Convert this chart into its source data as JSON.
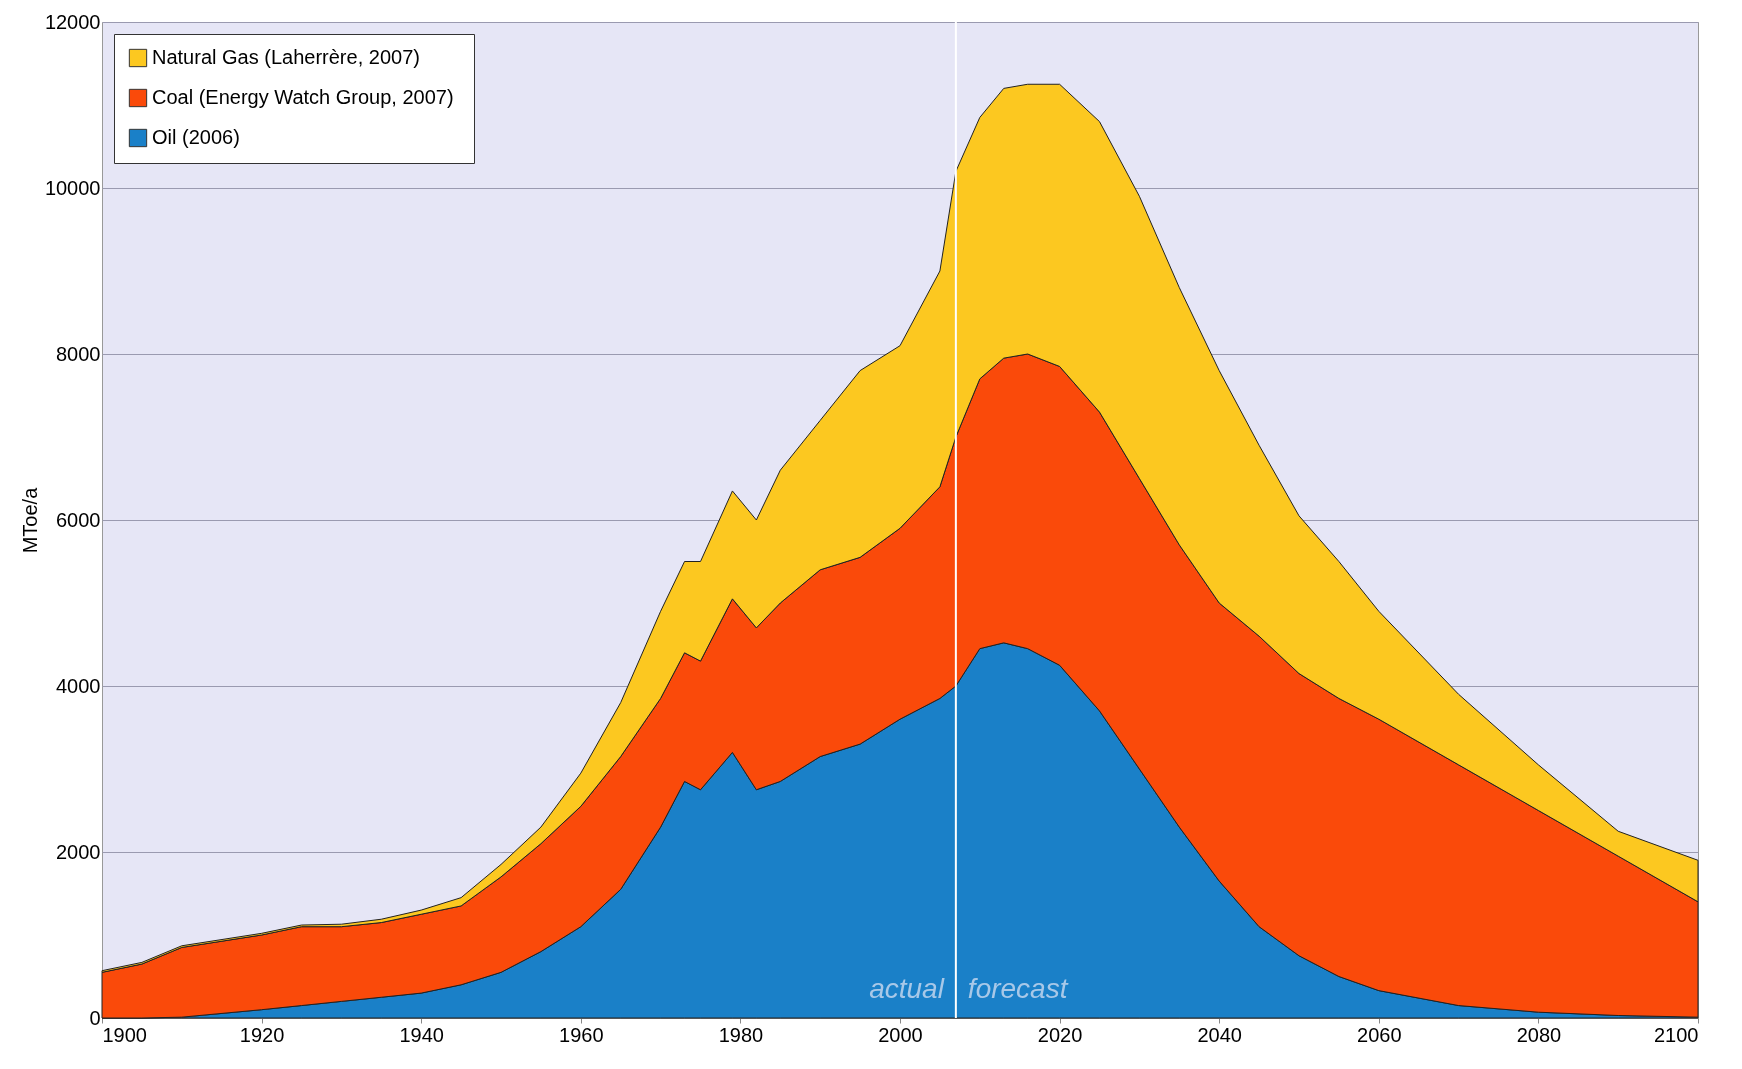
{
  "chart_data": {
    "type": "area",
    "stacked": true,
    "ylabel": "MToe/a",
    "x": [
      1900,
      1905,
      1910,
      1920,
      1925,
      1930,
      1935,
      1940,
      1945,
      1950,
      1955,
      1960,
      1965,
      1970,
      1973,
      1975,
      1979,
      1982,
      1985,
      1990,
      1995,
      2000,
      2005,
      2007,
      2010,
      2013,
      2016,
      2020,
      2025,
      2030,
      2035,
      2040,
      2045,
      2050,
      2055,
      2060,
      2070,
      2080,
      2090,
      2100
    ],
    "series": [
      {
        "name": "Oil  (2006)",
        "color": "#1a80c8",
        "values": [
          0,
          0,
          10,
          100,
          150,
          200,
          250,
          300,
          400,
          550,
          800,
          1100,
          1550,
          2300,
          2850,
          2750,
          3200,
          2750,
          2850,
          3150,
          3300,
          3600,
          3850,
          4000,
          4450,
          4520,
          4450,
          4250,
          3700,
          3000,
          2300,
          1650,
          1100,
          750,
          500,
          330,
          150,
          70,
          30,
          10
        ]
      },
      {
        "name": "Coal  (Energy Watch Group, 2007)",
        "color": "#fa4a0a",
        "values": [
          550,
          650,
          840,
          900,
          950,
          900,
          900,
          950,
          950,
          1150,
          1300,
          1450,
          1600,
          1550,
          1550,
          1550,
          1850,
          1950,
          2150,
          2250,
          2250,
          2300,
          2550,
          3000,
          3250,
          3430,
          3550,
          3600,
          3600,
          3500,
          3400,
          3350,
          3500,
          3400,
          3350,
          3270,
          2900,
          2430,
          1920,
          1390
        ]
      },
      {
        "name": "Natural Gas  (Laherrère, 2007)",
        "color": "#fcc820",
        "values": [
          20,
          20,
          20,
          20,
          20,
          30,
          40,
          50,
          100,
          150,
          200,
          400,
          650,
          1050,
          1100,
          1200,
          1300,
          1300,
          1600,
          1800,
          2250,
          2200,
          2600,
          3200,
          3150,
          3250,
          3250,
          3400,
          3500,
          3400,
          3100,
          2800,
          2300,
          1900,
          1650,
          1300,
          850,
          550,
          300,
          500
        ]
      }
    ],
    "xlim": [
      1900,
      2100
    ],
    "xticks": [
      1900,
      1920,
      1940,
      1960,
      1980,
      2000,
      2020,
      2040,
      2060,
      2080,
      2100
    ],
    "ylim": [
      0,
      12000
    ],
    "yticks": [
      0,
      2000,
      4000,
      6000,
      8000,
      10000,
      12000
    ],
    "grid": "y",
    "legend": "top left",
    "ref_lines": [
      {
        "axis": "x",
        "value": 2007,
        "color": "#ffffff"
      }
    ],
    "annotations": [
      "actual",
      "forecast"
    ]
  }
}
